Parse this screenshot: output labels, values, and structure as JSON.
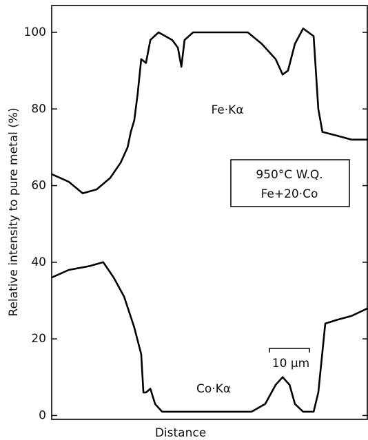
{
  "chart_data": {
    "type": "line",
    "y_label": "Relative intensity to pure metal  (%)",
    "x_label": "Distance",
    "annotations": [
      "Fe·Kα",
      "Co·Kα",
      "950°C W.Q.",
      "Fe+20·Co",
      "10 μm"
    ],
    "xlim": [
      0,
      100
    ],
    "ylim": [
      -1,
      107
    ],
    "yticks": [
      0,
      20,
      40,
      60,
      80,
      100
    ],
    "grid": false,
    "series": [
      {
        "name": "Fe·Kα",
        "color": "#000000",
        "x": [
          0,
          5.4,
          9.8,
          14.2,
          18.5,
          21.8,
          24,
          25,
          26.1,
          27.2,
          28.3,
          29.8,
          31.2,
          33.8,
          38.1,
          39.9,
          41,
          42,
          44.7,
          49,
          55.6,
          62,
          66.4,
          70.8,
          73,
          74.7,
          76.9,
          79.5,
          82.8,
          84.3,
          85.6,
          90.4,
          94.8,
          100
        ],
        "values": [
          63,
          61,
          58,
          59,
          62,
          66,
          70,
          74,
          77,
          84,
          93,
          92,
          98,
          100,
          98,
          96,
          91,
          98,
          100,
          100,
          100,
          100,
          97,
          93,
          89,
          90,
          97,
          101,
          99,
          80,
          74,
          73,
          72,
          72
        ]
      },
      {
        "name": "Co·Kα",
        "color": "#000000",
        "x": [
          0,
          5.4,
          12,
          16.3,
          19.6,
          22.9,
          26.1,
          28.3,
          29,
          29.8,
          31.2,
          32.7,
          34.9,
          40.3,
          49,
          57.7,
          63.2,
          67.5,
          70.8,
          73,
          75.2,
          76.9,
          79.5,
          82.8,
          84.3,
          86.5,
          90.4,
          94.8,
          100
        ],
        "values": [
          36,
          38,
          39,
          40,
          36,
          31,
          23,
          16,
          6,
          6,
          7,
          3,
          1,
          1,
          1,
          1,
          1,
          3,
          8,
          10,
          8,
          3,
          1,
          1,
          6,
          24,
          25,
          26,
          28
        ]
      }
    ]
  }
}
